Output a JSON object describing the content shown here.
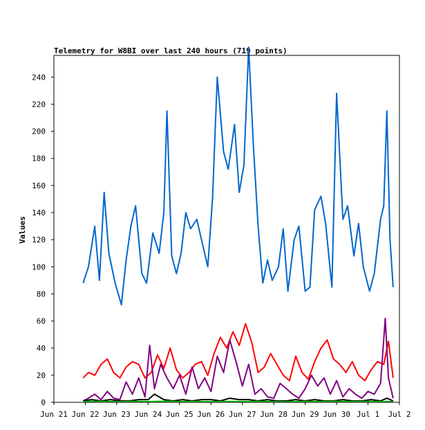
{
  "chart_data": {
    "type": "line",
    "title": "Telemetry for W8BI over last 240 hours (719 points)",
    "ylabel": "Values",
    "xlabel": "",
    "ylim": [
      0,
      256
    ],
    "yticks": [
      0,
      20,
      40,
      60,
      80,
      100,
      120,
      140,
      160,
      180,
      200,
      220,
      240
    ],
    "xlim": [
      0,
      11
    ],
    "xticks": [
      {
        "label": "Jun 21",
        "x": 0
      },
      {
        "label": "Jun 22",
        "x": 1
      },
      {
        "label": "Jun 23",
        "x": 2
      },
      {
        "label": "Jun 24",
        "x": 3
      },
      {
        "label": "Jun 25",
        "x": 4
      },
      {
        "label": "Jun 26",
        "x": 5
      },
      {
        "label": "Jun 27",
        "x": 6
      },
      {
        "label": "Jun 28",
        "x": 7
      },
      {
        "label": "Jun 29",
        "x": 8
      },
      {
        "label": "Jun 30",
        "x": 9
      },
      {
        "label": "Jul 1",
        "x": 10
      },
      {
        "label": "Jul 2",
        "x": 11
      }
    ],
    "grid": false,
    "series": [
      {
        "color": "#0066cc",
        "x": [
          0.93,
          1.1,
          1.3,
          1.45,
          1.6,
          1.75,
          1.95,
          2.15,
          2.3,
          2.45,
          2.6,
          2.8,
          2.95,
          3.15,
          3.35,
          3.5,
          3.6,
          3.75,
          3.9,
          4.05,
          4.2,
          4.35,
          4.55,
          4.7,
          4.9,
          5.05,
          5.2,
          5.4,
          5.55,
          5.75,
          5.9,
          6.05,
          6.2,
          6.35,
          6.5,
          6.65,
          6.8,
          6.95,
          7.15,
          7.3,
          7.45,
          7.65,
          7.8,
          8.0,
          8.15,
          8.3,
          8.5,
          8.65,
          8.85,
          9.0,
          9.2,
          9.35,
          9.55,
          9.7,
          9.85,
          10.05,
          10.2,
          10.4,
          10.5,
          10.6,
          10.7,
          10.8
        ],
        "y": [
          88,
          100,
          130,
          90,
          155,
          110,
          88,
          72,
          105,
          130,
          145,
          95,
          88,
          125,
          110,
          140,
          215,
          108,
          95,
          110,
          140,
          128,
          135,
          120,
          100,
          150,
          240,
          185,
          172,
          205,
          155,
          175,
          262,
          190,
          130,
          88,
          105,
          90,
          100,
          128,
          82,
          120,
          130,
          82,
          85,
          142,
          152,
          132,
          85,
          228,
          135,
          145,
          108,
          132,
          100,
          82,
          95,
          135,
          145,
          215,
          120,
          85
        ]
      },
      {
        "color": "#ff0000",
        "x": [
          0.93,
          1.1,
          1.3,
          1.5,
          1.7,
          1.9,
          2.1,
          2.3,
          2.5,
          2.7,
          2.9,
          3.1,
          3.3,
          3.5,
          3.7,
          3.9,
          4.1,
          4.3,
          4.5,
          4.7,
          4.9,
          5.1,
          5.3,
          5.5,
          5.7,
          5.9,
          6.1,
          6.3,
          6.5,
          6.7,
          6.9,
          7.1,
          7.3,
          7.5,
          7.7,
          7.9,
          8.1,
          8.3,
          8.5,
          8.7,
          8.9,
          9.1,
          9.3,
          9.5,
          9.7,
          9.9,
          10.1,
          10.3,
          10.5,
          10.65,
          10.8
        ],
        "y": [
          18,
          22,
          20,
          28,
          32,
          22,
          18,
          26,
          30,
          28,
          18,
          22,
          35,
          25,
          40,
          24,
          18,
          22,
          28,
          30,
          20,
          36,
          48,
          40,
          52,
          42,
          58,
          44,
          22,
          26,
          36,
          28,
          20,
          16,
          34,
          22,
          17,
          30,
          40,
          46,
          32,
          28,
          22,
          30,
          20,
          16,
          24,
          30,
          28,
          45,
          18
        ]
      },
      {
        "color": "#800080",
        "x": [
          0.93,
          1.1,
          1.3,
          1.5,
          1.7,
          1.9,
          2.1,
          2.3,
          2.5,
          2.7,
          2.9,
          3.05,
          3.2,
          3.4,
          3.6,
          3.8,
          4.0,
          4.2,
          4.4,
          4.6,
          4.8,
          5.0,
          5.2,
          5.4,
          5.6,
          5.8,
          6.0,
          6.2,
          6.4,
          6.6,
          6.8,
          7.0,
          7.2,
          7.4,
          7.6,
          7.8,
          8.0,
          8.2,
          8.4,
          8.6,
          8.8,
          9.0,
          9.2,
          9.4,
          9.6,
          9.8,
          10.0,
          10.2,
          10.4,
          10.55,
          10.65,
          10.8
        ],
        "y": [
          1,
          3,
          6,
          2,
          8,
          3,
          2,
          15,
          6,
          18,
          4,
          42,
          10,
          28,
          18,
          10,
          20,
          6,
          26,
          10,
          18,
          8,
          34,
          22,
          46,
          30,
          12,
          28,
          6,
          10,
          4,
          3,
          14,
          10,
          6,
          3,
          10,
          20,
          12,
          18,
          6,
          16,
          4,
          10,
          6,
          3,
          8,
          6,
          14,
          62,
          18,
          3
        ]
      },
      {
        "color": "#000000",
        "x": [
          0.93,
          1.2,
          1.5,
          1.8,
          2.1,
          2.4,
          2.7,
          3.0,
          3.2,
          3.5,
          3.8,
          4.1,
          4.4,
          4.7,
          5.0,
          5.3,
          5.6,
          5.9,
          6.2,
          6.5,
          6.8,
          7.1,
          7.4,
          7.7,
          8.0,
          8.3,
          8.6,
          8.9,
          9.2,
          9.5,
          9.8,
          10.1,
          10.4,
          10.6,
          10.8
        ],
        "y": [
          1,
          2,
          1,
          2,
          1,
          1,
          2,
          2,
          6,
          2,
          1,
          2,
          1,
          2,
          2,
          1,
          3,
          2,
          2,
          1,
          2,
          1,
          1,
          2,
          1,
          2,
          1,
          1,
          2,
          1,
          1,
          2,
          1,
          3,
          1
        ]
      },
      {
        "color": "#00cc00",
        "x": [
          0.93,
          1.5,
          2.0,
          2.5,
          3.0,
          3.5,
          4.0,
          4.5,
          5.0,
          5.5,
          6.0,
          6.5,
          7.0,
          7.5,
          8.0,
          8.5,
          9.0,
          9.5,
          10.0,
          10.5,
          10.8
        ],
        "y": [
          0.5,
          0.7,
          0.4,
          0.6,
          0.5,
          0.8,
          0.5,
          0.6,
          0.4,
          0.7,
          0.5,
          0.6,
          0.5,
          0.4,
          0.6,
          0.5,
          0.7,
          0.5,
          0.6,
          0.5,
          0.5
        ]
      }
    ]
  }
}
